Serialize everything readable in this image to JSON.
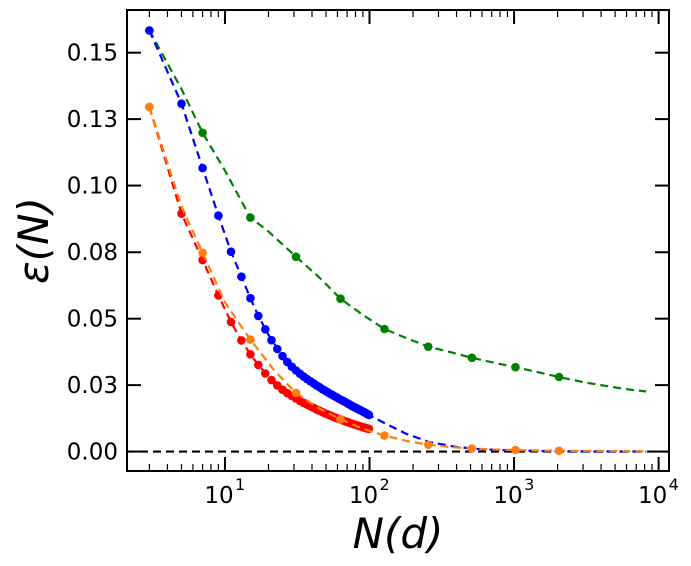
{
  "chart_data": {
    "type": "line",
    "title": "",
    "xlabel": "N(d)",
    "ylabel": "ε(N)",
    "xscale": "log",
    "xlim": [
      2.1,
      11800
    ],
    "ylim": [
      -0.0077,
      0.1748
    ],
    "grid": false,
    "legend": "none",
    "x_ticks": [
      {
        "value": 10,
        "base": "10",
        "exp": "1"
      },
      {
        "value": 100,
        "base": "10",
        "exp": "2"
      },
      {
        "value": 1000,
        "base": "10",
        "exp": "3"
      },
      {
        "value": 10000,
        "base": "10",
        "exp": "4"
      }
    ],
    "y_ticks": [
      {
        "value": 0.0,
        "label": "0.00"
      },
      {
        "value": 0.0263,
        "label": "0.03"
      },
      {
        "value": 0.0526,
        "label": "0.05"
      },
      {
        "value": 0.0789,
        "label": "0.08"
      },
      {
        "value": 0.1053,
        "label": "0.10"
      },
      {
        "value": 0.1316,
        "label": "0.13"
      },
      {
        "value": 0.1579,
        "label": "0.15"
      }
    ],
    "reference_line": {
      "y": 0.0,
      "style": "dashed",
      "color": "#000000"
    },
    "series": [
      {
        "name": "green",
        "color": "#008000",
        "markers": true,
        "points": [
          [
            3,
            0.1667
          ],
          [
            7,
            0.1262
          ],
          [
            15,
            0.0926
          ],
          [
            31,
            0.0771
          ],
          [
            63,
            0.0605
          ],
          [
            127,
            0.0485
          ],
          [
            255,
            0.0415
          ],
          [
            511,
            0.0371
          ],
          [
            1023,
            0.0334
          ],
          [
            2047,
            0.0295
          ]
        ],
        "curve": [
          [
            3,
            0.1667
          ],
          [
            5,
            0.1435
          ],
          [
            7,
            0.1262
          ],
          [
            10,
            0.1112
          ],
          [
            15,
            0.0926
          ],
          [
            20,
            0.0871
          ],
          [
            31,
            0.0771
          ],
          [
            45,
            0.0689
          ],
          [
            63,
            0.0605
          ],
          [
            90,
            0.0541
          ],
          [
            127,
            0.0485
          ],
          [
            180,
            0.0449
          ],
          [
            255,
            0.0415
          ],
          [
            360,
            0.0394
          ],
          [
            511,
            0.0371
          ],
          [
            720,
            0.0352
          ],
          [
            1023,
            0.0334
          ],
          [
            1450,
            0.0315
          ],
          [
            2047,
            0.0295
          ],
          [
            3000,
            0.0275
          ],
          [
            4500,
            0.0258
          ],
          [
            6500,
            0.0244
          ],
          [
            8191,
            0.0238
          ]
        ]
      },
      {
        "name": "blue",
        "color": "#0000ff",
        "markers": true,
        "points": [
          [
            3,
            0.1667
          ],
          [
            5,
            0.1377
          ],
          [
            7,
            0.1122
          ],
          [
            9,
            0.0934
          ],
          [
            11,
            0.0791
          ],
          [
            13,
            0.0692
          ],
          [
            15,
            0.0607
          ],
          [
            17,
            0.0537
          ],
          [
            19,
            0.0484
          ],
          [
            21,
            0.0441
          ],
          [
            23,
            0.0406
          ],
          [
            25,
            0.0378
          ],
          [
            27,
            0.0355
          ],
          [
            29,
            0.0336
          ],
          [
            31,
            0.0321
          ],
          [
            33,
            0.0308
          ],
          [
            35,
            0.0297
          ],
          [
            37,
            0.0287
          ],
          [
            39,
            0.0278
          ],
          [
            41,
            0.027
          ],
          [
            43,
            0.0262
          ],
          [
            45,
            0.0255
          ],
          [
            47,
            0.0248
          ],
          [
            49,
            0.0242
          ],
          [
            51,
            0.0236
          ],
          [
            53,
            0.023
          ],
          [
            55,
            0.0225
          ],
          [
            57,
            0.022
          ],
          [
            59,
            0.0215
          ],
          [
            61,
            0.021
          ],
          [
            63,
            0.0206
          ],
          [
            65,
            0.0202
          ],
          [
            67,
            0.0198
          ],
          [
            69,
            0.0194
          ],
          [
            71,
            0.019
          ],
          [
            73,
            0.0186
          ],
          [
            75,
            0.0182
          ],
          [
            77,
            0.0178
          ],
          [
            79,
            0.0175
          ],
          [
            81,
            0.0172
          ],
          [
            83,
            0.0169
          ],
          [
            85,
            0.0166
          ],
          [
            87,
            0.0163
          ],
          [
            89,
            0.016
          ],
          [
            91,
            0.0157
          ],
          [
            93,
            0.0154
          ],
          [
            95,
            0.0151
          ],
          [
            97,
            0.0148
          ],
          [
            99,
            0.0145
          ]
        ],
        "curve": [
          [
            3,
            0.1667
          ],
          [
            5,
            0.1377
          ],
          [
            7,
            0.1122
          ],
          [
            9,
            0.0934
          ],
          [
            11,
            0.0791
          ],
          [
            13,
            0.0692
          ],
          [
            15,
            0.0607
          ],
          [
            17,
            0.0537
          ],
          [
            20,
            0.0462
          ],
          [
            25,
            0.0378
          ],
          [
            31,
            0.0321
          ],
          [
            40,
            0.0274
          ],
          [
            50,
            0.0239
          ],
          [
            60,
            0.0212
          ],
          [
            70,
            0.0192
          ],
          [
            80,
            0.0173
          ],
          [
            90,
            0.0158
          ],
          [
            99,
            0.0145
          ],
          [
            130,
            0.011
          ],
          [
            180,
            0.007
          ],
          [
            260,
            0.0038
          ],
          [
            400,
            0.0018
          ],
          [
            600,
            0.0009
          ],
          [
            1000,
            0.0004
          ],
          [
            2000,
            0.0001
          ],
          [
            4000,
            3e-05
          ],
          [
            8191,
            1e-05
          ]
        ]
      },
      {
        "name": "red",
        "color": "#ff0000",
        "markers": true,
        "points": [
          [
            3,
            0.1364
          ],
          [
            5,
            0.0942
          ],
          [
            7,
            0.0758
          ],
          [
            9,
            0.0618
          ],
          [
            11,
            0.0513
          ],
          [
            13,
            0.044
          ],
          [
            15,
            0.0385
          ],
          [
            17,
            0.0343
          ],
          [
            19,
            0.0309
          ],
          [
            21,
            0.0283
          ],
          [
            23,
            0.0262
          ],
          [
            25,
            0.0245
          ],
          [
            27,
            0.0231
          ],
          [
            29,
            0.022
          ],
          [
            31,
            0.021
          ],
          [
            33,
            0.0201
          ],
          [
            35,
            0.0193
          ],
          [
            37,
            0.0186
          ],
          [
            39,
            0.0179
          ],
          [
            41,
            0.0173
          ],
          [
            43,
            0.0167
          ],
          [
            45,
            0.0162
          ],
          [
            47,
            0.0157
          ],
          [
            49,
            0.0152
          ],
          [
            51,
            0.0148
          ],
          [
            53,
            0.0144
          ],
          [
            55,
            0.014
          ],
          [
            57,
            0.0136
          ],
          [
            59,
            0.0133
          ],
          [
            61,
            0.013
          ],
          [
            63,
            0.0127
          ],
          [
            65,
            0.0124
          ],
          [
            67,
            0.0121
          ],
          [
            69,
            0.0118
          ],
          [
            71,
            0.0116
          ],
          [
            73,
            0.0113
          ],
          [
            75,
            0.0111
          ],
          [
            77,
            0.0109
          ],
          [
            79,
            0.0107
          ],
          [
            81,
            0.0105
          ],
          [
            83,
            0.0103
          ],
          [
            85,
            0.0101
          ],
          [
            87,
            0.0099
          ],
          [
            89,
            0.0097
          ],
          [
            91,
            0.0096
          ],
          [
            93,
            0.0094
          ],
          [
            95,
            0.0093
          ],
          [
            97,
            0.0091
          ],
          [
            99,
            0.009
          ]
        ],
        "curve": [
          [
            3,
            0.1364
          ],
          [
            5,
            0.0942
          ],
          [
            7,
            0.0758
          ],
          [
            9,
            0.0618
          ],
          [
            11,
            0.0513
          ],
          [
            13,
            0.044
          ],
          [
            15,
            0.0385
          ],
          [
            17,
            0.0343
          ],
          [
            20,
            0.0296
          ],
          [
            25,
            0.0245
          ],
          [
            31,
            0.021
          ],
          [
            40,
            0.0176
          ],
          [
            50,
            0.015
          ],
          [
            60,
            0.0131
          ],
          [
            70,
            0.0117
          ],
          [
            80,
            0.0106
          ],
          [
            90,
            0.0097
          ],
          [
            99,
            0.009
          ]
        ]
      },
      {
        "name": "orange",
        "color": "#ff7f0e",
        "markers": true,
        "points": [
          [
            3,
            0.1364
          ],
          [
            7,
            0.0787
          ],
          [
            15,
            0.0443
          ],
          [
            31,
            0.0232
          ],
          [
            63,
            0.0128
          ],
          [
            127,
            0.0063
          ],
          [
            255,
            0.0027
          ],
          [
            511,
            0.0012
          ],
          [
            1023,
            0.0006
          ],
          [
            2047,
            0.0003
          ]
        ],
        "curve": [
          [
            3,
            0.1364
          ],
          [
            5,
            0.097
          ],
          [
            7,
            0.0787
          ],
          [
            10,
            0.059
          ],
          [
            15,
            0.0443
          ],
          [
            22,
            0.032
          ],
          [
            31,
            0.0232
          ],
          [
            45,
            0.017
          ],
          [
            63,
            0.0128
          ],
          [
            90,
            0.009
          ],
          [
            127,
            0.0063
          ],
          [
            180,
            0.0042
          ],
          [
            255,
            0.0027
          ],
          [
            360,
            0.0018
          ],
          [
            511,
            0.0012
          ],
          [
            720,
            0.0008
          ],
          [
            1023,
            0.0006
          ],
          [
            1450,
            0.0004
          ],
          [
            2047,
            0.0003
          ],
          [
            4000,
            0.0002
          ],
          [
            8191,
            0.0001
          ]
        ]
      }
    ]
  }
}
